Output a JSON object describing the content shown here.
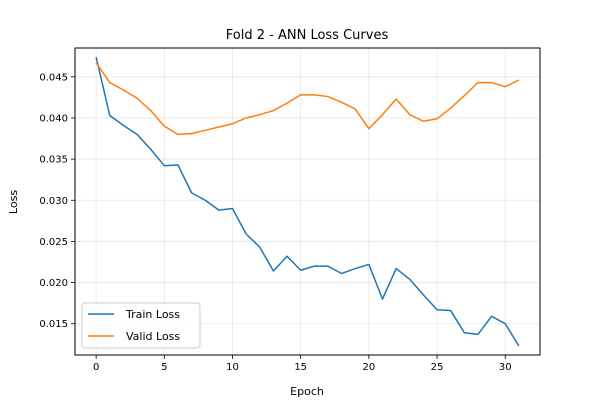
{
  "chart_data": {
    "type": "line",
    "title": "Fold 2 - ANN Loss Curves",
    "xlabel": "Epoch",
    "ylabel": "Loss",
    "xlim": [
      -1.55,
      32.55
    ],
    "ylim": [
      0.0112,
      0.0485
    ],
    "xticks": [
      0,
      5,
      10,
      15,
      20,
      25,
      30
    ],
    "yticks": [
      0.015,
      0.02,
      0.025,
      0.03,
      0.035,
      0.04,
      0.045
    ],
    "ytick_labels": [
      "0.015",
      "0.020",
      "0.025",
      "0.030",
      "0.035",
      "0.040",
      "0.045"
    ],
    "grid": true,
    "legend_position": "lower-left",
    "x": [
      0,
      1,
      2,
      3,
      4,
      5,
      6,
      7,
      8,
      9,
      10,
      11,
      12,
      13,
      14,
      15,
      16,
      17,
      18,
      19,
      20,
      21,
      22,
      23,
      24,
      25,
      26,
      27,
      28,
      29,
      30,
      31
    ],
    "series": [
      {
        "name": "Train Loss",
        "color": "#1f77b4",
        "values": [
          0.0474,
          0.0403,
          0.0391,
          0.038,
          0.0362,
          0.0342,
          0.0343,
          0.0309,
          0.03,
          0.0288,
          0.029,
          0.0259,
          0.0243,
          0.0214,
          0.0232,
          0.0215,
          0.022,
          0.022,
          0.0211,
          0.0217,
          0.0222,
          0.018,
          0.0217,
          0.0204,
          0.0185,
          0.0167,
          0.0166,
          0.0139,
          0.0137,
          0.0159,
          0.015,
          0.0123
        ]
      },
      {
        "name": "Valid Loss",
        "color": "#ff7f0e",
        "values": [
          0.0467,
          0.0443,
          0.0434,
          0.0424,
          0.0409,
          0.039,
          0.038,
          0.0381,
          0.0385,
          0.0389,
          0.0393,
          0.04,
          0.0404,
          0.0409,
          0.0418,
          0.0428,
          0.0428,
          0.0426,
          0.0419,
          0.0411,
          0.0387,
          0.0404,
          0.0423,
          0.0404,
          0.0396,
          0.0399,
          0.0412,
          0.0427,
          0.0443,
          0.0443,
          0.0438,
          0.0446
        ]
      }
    ]
  }
}
